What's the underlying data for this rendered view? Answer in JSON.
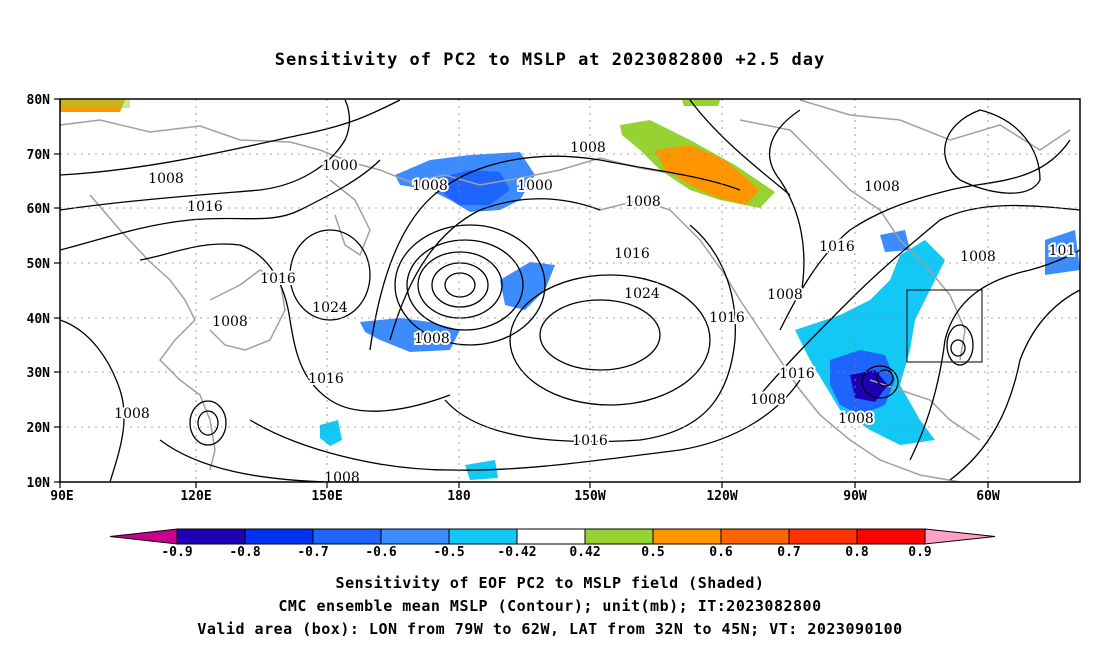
{
  "title": "Sensitivity of PC2 to MSLP at 2023082800 +2.5 day",
  "axes": {
    "lat_labels": [
      "80N",
      "70N",
      "60N",
      "50N",
      "40N",
      "30N",
      "20N",
      "10N"
    ],
    "lon_labels": [
      "90E",
      "120E",
      "150E",
      "180",
      "150W",
      "120W",
      "90W",
      "60W"
    ]
  },
  "contour_labels": [
    "1000",
    "1008",
    "1008",
    "1000",
    "1008",
    "1008",
    "1016",
    "1016",
    "1016",
    "1024",
    "1008",
    "1008",
    "1008",
    "1024",
    "1016",
    "1016",
    "1008",
    "1016",
    "1016",
    "1008",
    "1008",
    "1008",
    "1016",
    "1008",
    "1008",
    "101"
  ],
  "colorbar": {
    "labels": [
      "-0.9",
      "-0.8",
      "-0.7",
      "-0.6",
      "-0.5",
      "-0.42",
      "0.42",
      "0.5",
      "0.6",
      "0.7",
      "0.8",
      "0.9"
    ],
    "colors": [
      "#c8008c",
      "#1e00b4",
      "#0032f0",
      "#1e64ff",
      "#3c8cff",
      "#14c8f5",
      "#ffffff",
      "#96d232",
      "#ff9600",
      "#ff6400",
      "#ff3200",
      "#ff0000",
      "#ffa0c8"
    ]
  },
  "captions": [
    "Sensitivity of EOF PC2 to MSLP field (Shaded)",
    "CMC ensemble mean MSLP (Contour); unit(mb); IT:2023082800",
    "Valid area (box): LON from 79W to 62W, LAT from 32N to 45N; VT: 2023090100"
  ]
}
